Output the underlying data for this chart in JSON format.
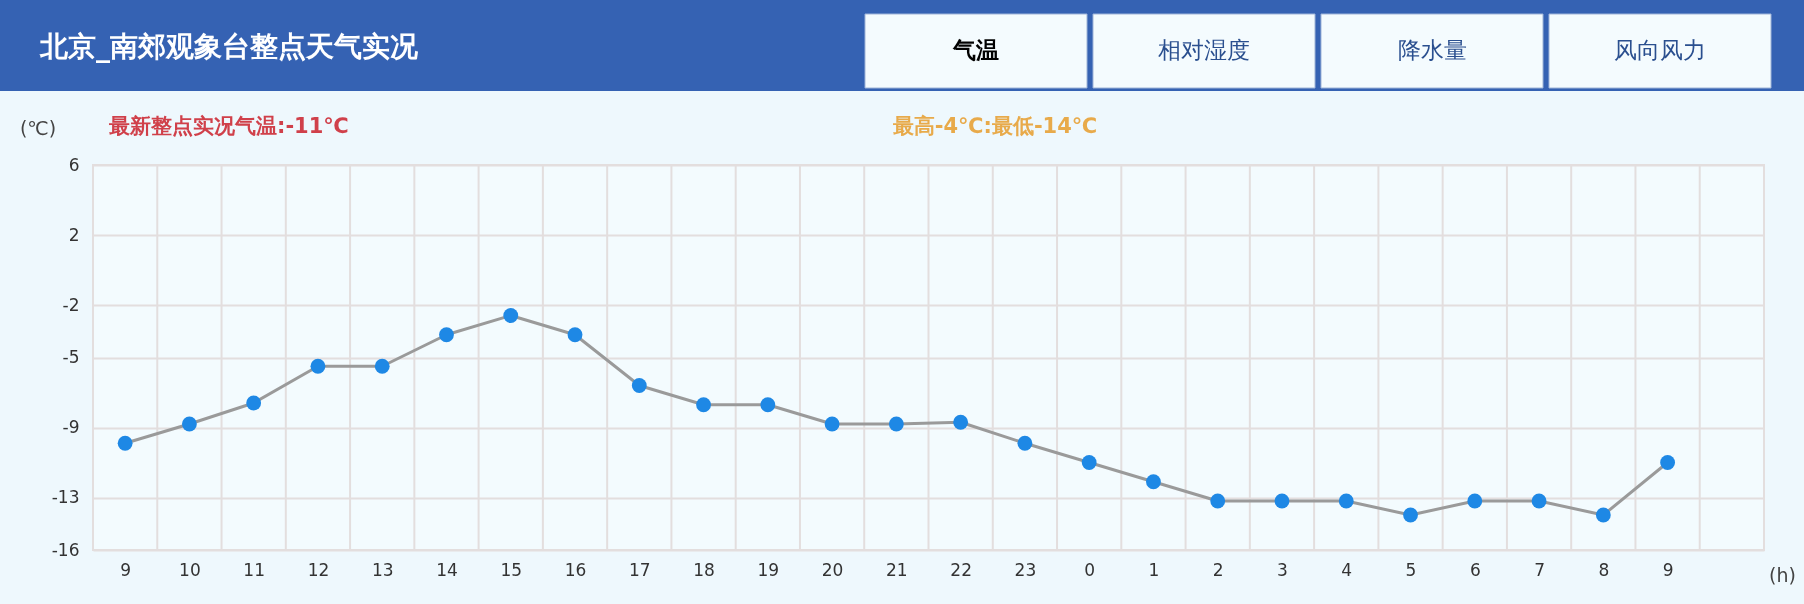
{
  "chart_data": {
    "type": "line",
    "title": "北京_南郊观象台整点天气实况",
    "xlabel": "(h)",
    "ylabel": "(℃)",
    "annotations": [
      "最新整点实况气温:-11℃",
      "最高-4℃:最低-14℃",
      "气温",
      "相对湿度",
      "降水量",
      "风向风力"
    ],
    "categories": [
      "9",
      "10",
      "11",
      "12",
      "13",
      "14",
      "15",
      "16",
      "17",
      "18",
      "19",
      "20",
      "21",
      "22",
      "23",
      "0",
      "1",
      "2",
      "3",
      "4",
      "5",
      "6",
      "7",
      "8",
      "9"
    ],
    "series": [
      {
        "color": "#1e88e5",
        "values": [
          -9.9,
          -8.8,
          -7.6,
          -5.5,
          -5.5,
          -3.7,
          -2.6,
          -3.7,
          -6.6,
          -7.7,
          -7.7,
          -8.8,
          -8.8,
          -8.7,
          -9.9,
          -11.0,
          -12.1,
          -13.2,
          -13.2,
          -13.2,
          -14.0,
          -13.2,
          -13.2,
          -14.0,
          -11.0
        ]
      }
    ],
    "ylim": [
      -16,
      6
    ],
    "yticks": [
      6,
      2,
      -2,
      -5,
      -9,
      -13,
      -16
    ],
    "grid": true,
    "marker": "circle",
    "line_style": "solid"
  }
}
